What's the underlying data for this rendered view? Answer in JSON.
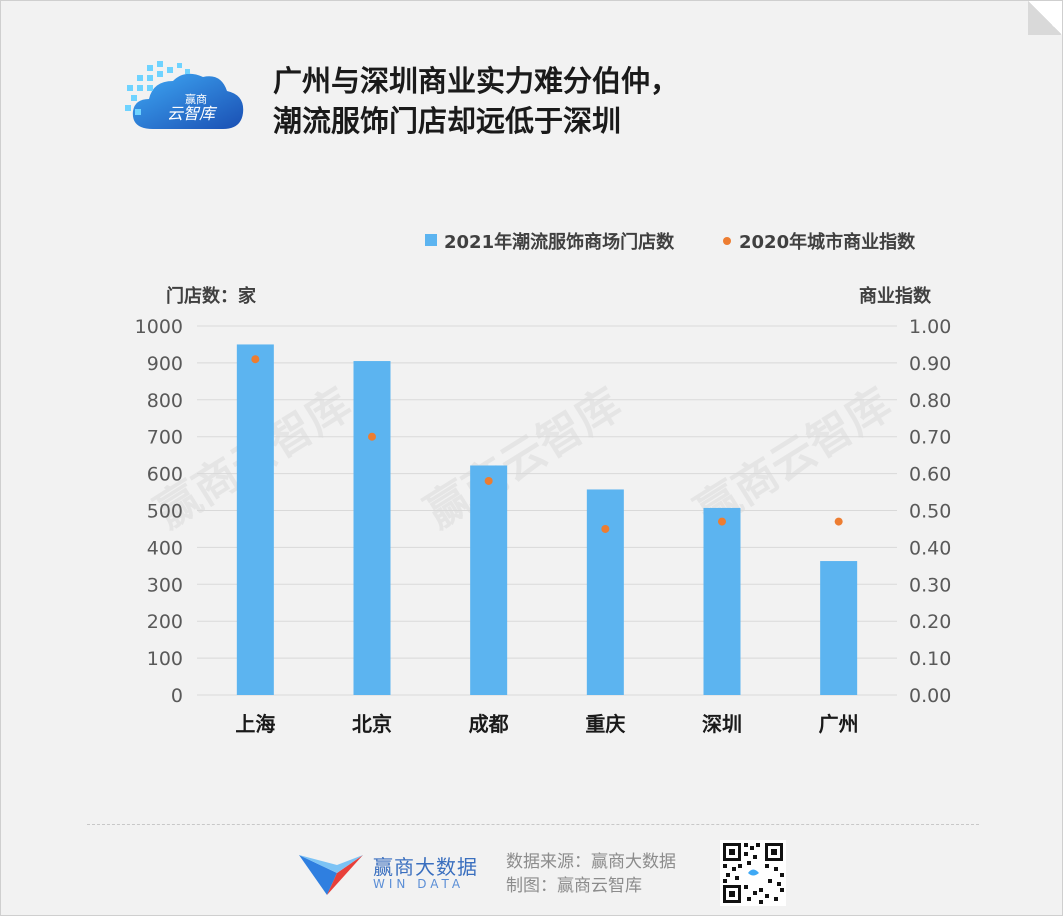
{
  "header": {
    "logo_text_top": "赢商",
    "logo_text_bottom": "云智库",
    "title_line1": "广州与深圳商业实力难分伯仲，",
    "title_line2": "潮流服饰门店却远低于深圳"
  },
  "chart_data": {
    "type": "bar",
    "categories": [
      "上海",
      "北京",
      "成都",
      "重庆",
      "深圳",
      "广州"
    ],
    "series": [
      {
        "name": "2021年潮流服饰商场门店数",
        "type": "bar",
        "axis": "left",
        "values": [
          950,
          905,
          622,
          557,
          507,
          363
        ]
      },
      {
        "name": "2020年城市商业指数",
        "type": "scatter",
        "axis": "right",
        "values": [
          0.91,
          0.7,
          0.58,
          0.45,
          0.47,
          0.47
        ]
      }
    ],
    "y_left": {
      "label": "门店数：家",
      "min": 0,
      "max": 1000,
      "ticks": [
        "0",
        "100",
        "200",
        "300",
        "400",
        "500",
        "600",
        "700",
        "800",
        "900",
        "1000"
      ]
    },
    "y_right": {
      "label": "商业指数",
      "min": 0,
      "max": 1,
      "ticks": [
        "0.00",
        "0.10",
        "0.20",
        "0.30",
        "0.40",
        "0.50",
        "0.60",
        "0.70",
        "0.80",
        "0.90",
        "1.00"
      ]
    },
    "grid": true,
    "legend_position": "top-right",
    "watermark": "赢商云智库"
  },
  "colors": {
    "bar": "#5cb4f0",
    "dot": "#ed7d31",
    "grid": "#d9d9d9",
    "axis_text": "#595959"
  },
  "footer": {
    "brand_cn": "赢商大数据",
    "brand_en": "WIN DATA",
    "source_line1": "数据来源：赢商大数据",
    "source_line2": "制图：赢商云智库"
  }
}
